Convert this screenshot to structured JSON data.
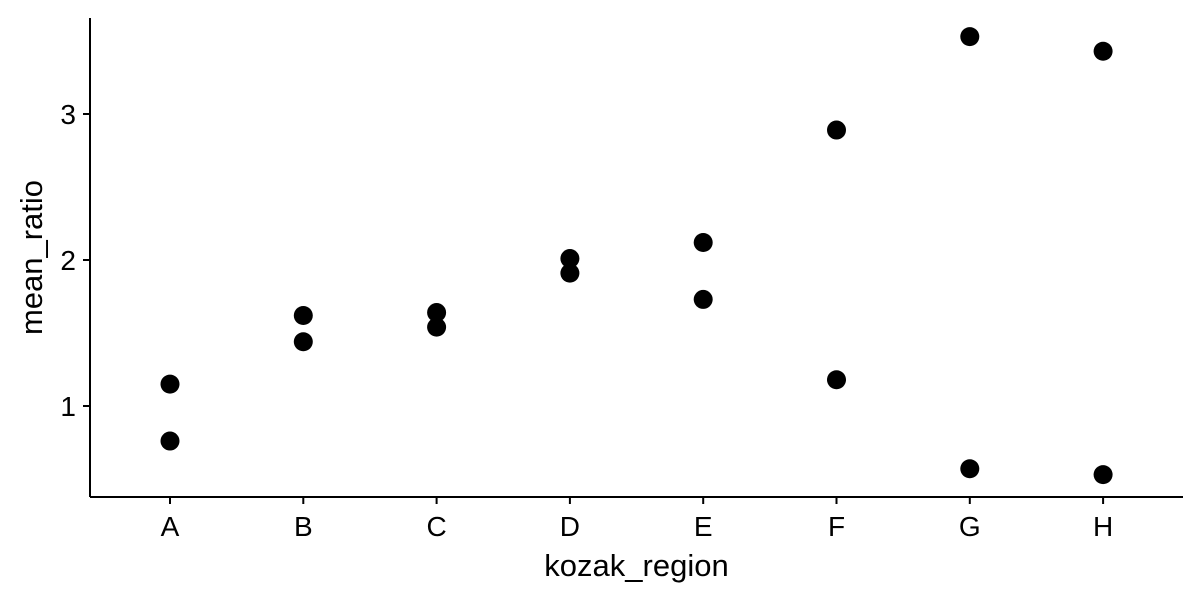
{
  "chart_data": {
    "type": "scatter",
    "xlabel": "kozak_region",
    "ylabel": "mean_ratio",
    "categories": [
      "A",
      "B",
      "C",
      "D",
      "E",
      "F",
      "G",
      "H"
    ],
    "y_ticks": [
      1,
      2,
      3
    ],
    "y_tick_labels": [
      "1",
      "2",
      "3"
    ],
    "ylim": [
      0.42,
      3.65
    ],
    "grid": false,
    "legend": "none",
    "point_color": "#000000",
    "points": [
      {
        "x": "A",
        "y": 1.15
      },
      {
        "x": "A",
        "y": 0.76
      },
      {
        "x": "B",
        "y": 1.62
      },
      {
        "x": "B",
        "y": 1.44
      },
      {
        "x": "C",
        "y": 1.64
      },
      {
        "x": "C",
        "y": 1.54
      },
      {
        "x": "D",
        "y": 2.01
      },
      {
        "x": "D",
        "y": 1.91
      },
      {
        "x": "E",
        "y": 2.12
      },
      {
        "x": "E",
        "y": 1.73
      },
      {
        "x": "F",
        "y": 2.89
      },
      {
        "x": "F",
        "y": 1.18
      },
      {
        "x": "G",
        "y": 3.53
      },
      {
        "x": "G",
        "y": 0.57
      },
      {
        "x": "H",
        "y": 3.43
      },
      {
        "x": "H",
        "y": 0.53
      }
    ]
  }
}
